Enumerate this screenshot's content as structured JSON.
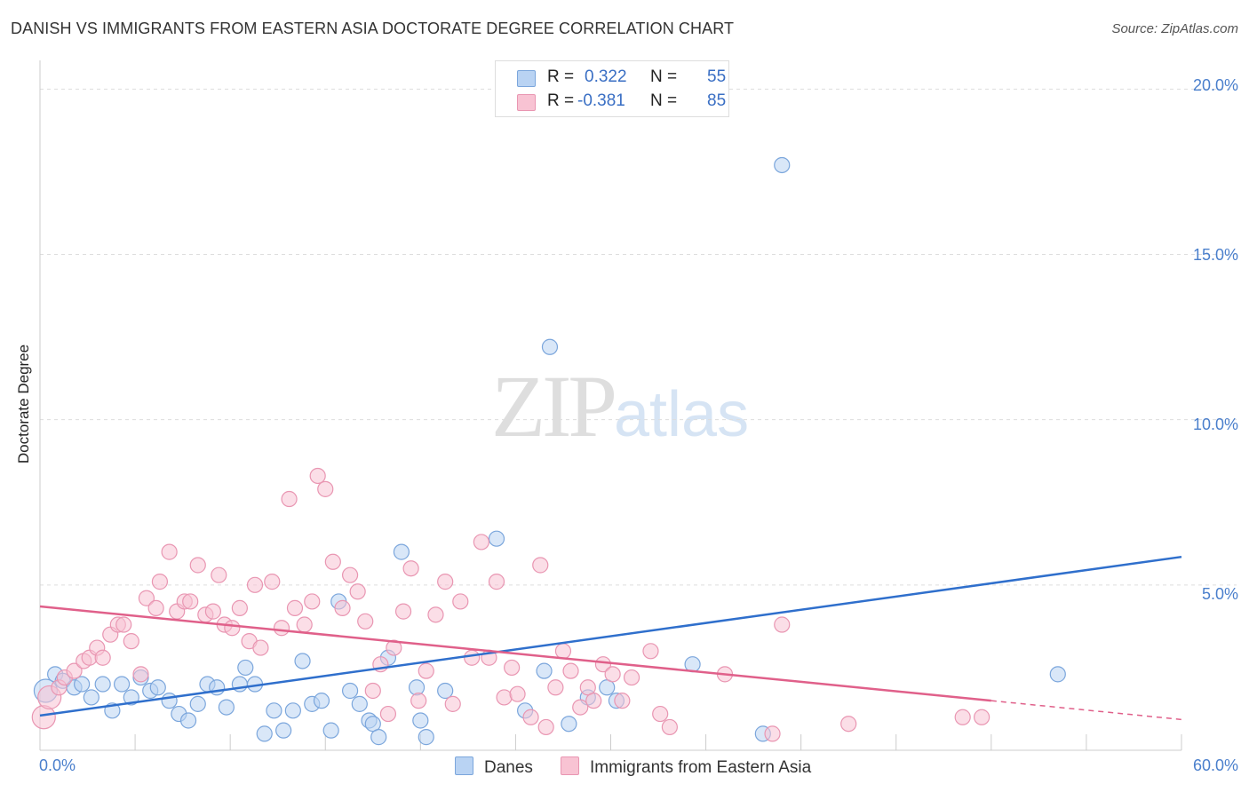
{
  "title": "DANISH VS IMMIGRANTS FROM EASTERN ASIA DOCTORATE DEGREE CORRELATION CHART",
  "source": "Source: ZipAtlas.com",
  "watermark": {
    "zip": "ZIP",
    "atlas": "atlas"
  },
  "colors": {
    "danes_fill": "#b9d3f3",
    "danes_stroke": "#7ba6dc",
    "danes_line": "#2f6fcc",
    "asia_fill": "#f8c3d3",
    "asia_stroke": "#e996b2",
    "asia_line": "#e0608a",
    "axis_text": "#4a7fcc",
    "grid": "#dddddd"
  },
  "stats": {
    "danes": {
      "r_label": "R =",
      "r_value": "0.322",
      "n_label": "N =",
      "n_value": "55"
    },
    "asia": {
      "r_label": "R =",
      "r_value": "-0.381",
      "n_label": "N =",
      "n_value": "85"
    }
  },
  "legend": {
    "danes": "Danes",
    "asia": "Immigrants from Eastern Asia"
  },
  "chart_data": {
    "type": "scatter",
    "title": "DANISH VS IMMIGRANTS FROM EASTERN ASIA DOCTORATE DEGREE CORRELATION CHART",
    "xlabel": "",
    "ylabel": "Doctorate Degree",
    "xlim": [
      0,
      60
    ],
    "ylim": [
      0,
      20.6
    ],
    "x_tick_labels": [
      "0.0%",
      "60.0%"
    ],
    "y_ticks": [
      5,
      10,
      15,
      20
    ],
    "y_tick_labels": [
      "5.0%",
      "10.0%",
      "15.0%",
      "20.0%"
    ],
    "grid": true,
    "series": [
      {
        "name": "Danes",
        "trend": {
          "x": [
            0,
            60
          ],
          "y": [
            1.05,
            5.85
          ]
        },
        "points": [
          [
            0.3,
            1.8
          ],
          [
            0.8,
            2.3
          ],
          [
            1.2,
            2.1
          ],
          [
            1.8,
            1.9
          ],
          [
            2.2,
            2.0
          ],
          [
            2.7,
            1.6
          ],
          [
            3.3,
            2.0
          ],
          [
            3.8,
            1.2
          ],
          [
            4.3,
            2.0
          ],
          [
            4.8,
            1.6
          ],
          [
            5.3,
            2.2
          ],
          [
            5.8,
            1.8
          ],
          [
            6.2,
            1.9
          ],
          [
            6.8,
            1.5
          ],
          [
            7.3,
            1.1
          ],
          [
            7.8,
            0.9
          ],
          [
            8.3,
            1.4
          ],
          [
            8.8,
            2.0
          ],
          [
            9.3,
            1.9
          ],
          [
            9.8,
            1.3
          ],
          [
            10.5,
            2.0
          ],
          [
            10.8,
            2.5
          ],
          [
            11.3,
            2.0
          ],
          [
            11.8,
            0.5
          ],
          [
            12.3,
            1.2
          ],
          [
            12.8,
            0.6
          ],
          [
            13.3,
            1.2
          ],
          [
            13.8,
            2.7
          ],
          [
            14.3,
            1.4
          ],
          [
            14.8,
            1.5
          ],
          [
            15.3,
            0.6
          ],
          [
            15.7,
            4.5
          ],
          [
            16.3,
            1.8
          ],
          [
            16.8,
            1.4
          ],
          [
            17.3,
            0.9
          ],
          [
            17.5,
            0.8
          ],
          [
            17.8,
            0.4
          ],
          [
            18.3,
            2.8
          ],
          [
            19.0,
            6.0
          ],
          [
            19.8,
            1.9
          ],
          [
            20.0,
            0.9
          ],
          [
            20.3,
            0.4
          ],
          [
            21.3,
            1.8
          ],
          [
            24.0,
            6.4
          ],
          [
            25.5,
            1.2
          ],
          [
            26.5,
            2.4
          ],
          [
            26.8,
            12.2
          ],
          [
            27.8,
            0.8
          ],
          [
            28.8,
            1.6
          ],
          [
            29.8,
            1.9
          ],
          [
            30.3,
            1.5
          ],
          [
            34.3,
            2.6
          ],
          [
            38.0,
            0.5
          ],
          [
            39.0,
            17.7
          ],
          [
            53.5,
            2.3
          ]
        ]
      },
      {
        "name": "Immigrants from Eastern Asia",
        "trend": {
          "x": [
            0,
            50
          ],
          "y": [
            4.35,
            1.5
          ]
        },
        "trend_dashed": {
          "x": [
            50,
            60
          ],
          "y": [
            1.5,
            0.93
          ]
        },
        "points": [
          [
            0.2,
            1.0
          ],
          [
            0.5,
            1.6
          ],
          [
            1.0,
            1.9
          ],
          [
            1.3,
            2.2
          ],
          [
            1.8,
            2.4
          ],
          [
            2.3,
            2.7
          ],
          [
            2.6,
            2.8
          ],
          [
            3.0,
            3.1
          ],
          [
            3.3,
            2.8
          ],
          [
            3.7,
            3.5
          ],
          [
            4.1,
            3.8
          ],
          [
            4.4,
            3.8
          ],
          [
            4.8,
            3.3
          ],
          [
            5.3,
            2.3
          ],
          [
            5.6,
            4.6
          ],
          [
            6.1,
            4.3
          ],
          [
            6.3,
            5.1
          ],
          [
            6.8,
            6.0
          ],
          [
            7.2,
            4.2
          ],
          [
            7.6,
            4.5
          ],
          [
            7.9,
            4.5
          ],
          [
            8.3,
            5.6
          ],
          [
            8.7,
            4.1
          ],
          [
            9.1,
            4.2
          ],
          [
            9.4,
            5.3
          ],
          [
            9.7,
            3.8
          ],
          [
            10.1,
            3.7
          ],
          [
            10.5,
            4.3
          ],
          [
            11.0,
            3.3
          ],
          [
            11.3,
            5.0
          ],
          [
            11.6,
            3.1
          ],
          [
            12.2,
            5.1
          ],
          [
            12.7,
            3.7
          ],
          [
            13.1,
            7.6
          ],
          [
            13.4,
            4.3
          ],
          [
            13.9,
            3.8
          ],
          [
            14.3,
            4.5
          ],
          [
            14.6,
            8.3
          ],
          [
            15.0,
            7.9
          ],
          [
            15.4,
            5.7
          ],
          [
            15.9,
            4.3
          ],
          [
            16.3,
            5.3
          ],
          [
            16.7,
            4.8
          ],
          [
            17.1,
            3.9
          ],
          [
            17.5,
            1.8
          ],
          [
            17.9,
            2.6
          ],
          [
            18.3,
            1.1
          ],
          [
            18.6,
            3.1
          ],
          [
            19.1,
            4.2
          ],
          [
            19.5,
            5.5
          ],
          [
            19.9,
            1.5
          ],
          [
            20.3,
            2.4
          ],
          [
            20.8,
            4.1
          ],
          [
            21.3,
            5.1
          ],
          [
            21.7,
            1.4
          ],
          [
            22.1,
            4.5
          ],
          [
            22.7,
            2.8
          ],
          [
            23.2,
            6.3
          ],
          [
            23.6,
            2.8
          ],
          [
            24.0,
            5.1
          ],
          [
            24.4,
            1.6
          ],
          [
            24.8,
            2.5
          ],
          [
            25.1,
            1.7
          ],
          [
            25.8,
            1.0
          ],
          [
            26.3,
            5.6
          ],
          [
            26.6,
            0.7
          ],
          [
            27.1,
            1.9
          ],
          [
            27.5,
            3.0
          ],
          [
            27.9,
            2.4
          ],
          [
            28.4,
            1.3
          ],
          [
            28.8,
            1.9
          ],
          [
            29.1,
            1.5
          ],
          [
            29.6,
            2.6
          ],
          [
            30.1,
            2.3
          ],
          [
            30.6,
            1.5
          ],
          [
            31.1,
            2.2
          ],
          [
            32.1,
            3.0
          ],
          [
            32.6,
            1.1
          ],
          [
            33.1,
            0.7
          ],
          [
            36.0,
            2.3
          ],
          [
            38.5,
            0.5
          ],
          [
            39.0,
            3.8
          ],
          [
            42.5,
            0.8
          ],
          [
            48.5,
            1.0
          ],
          [
            49.5,
            1.0
          ]
        ]
      }
    ]
  }
}
